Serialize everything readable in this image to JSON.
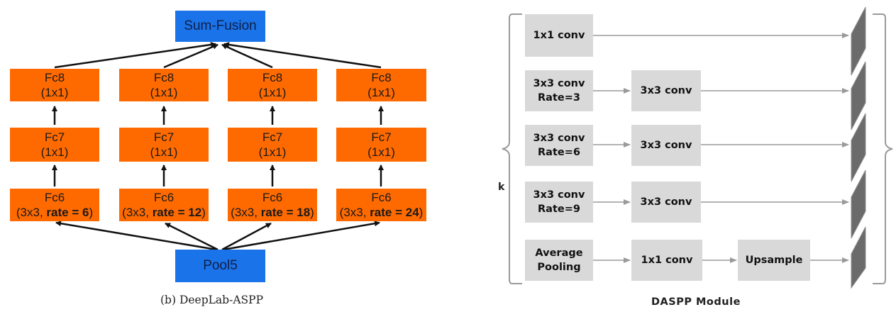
{
  "left_panel": {
    "top_box": "Sum-Fusion",
    "bottom_box": "Pool5",
    "caption": "(b) DeepLab-ASPP",
    "columns": [
      {
        "fc8_a": "Fc8",
        "fc8_b": "(1x1)",
        "fc7_a": "Fc7",
        "fc7_b": "(1x1)",
        "fc6_a": "Fc6",
        "fc6_prefix": "(3x3, ",
        "fc6_rate": "rate = 6",
        "fc6_suffix": ")"
      },
      {
        "fc8_a": "Fc8",
        "fc8_b": "(1x1)",
        "fc7_a": "Fc7",
        "fc7_b": "(1x1)",
        "fc6_a": "Fc6",
        "fc6_prefix": "(3x3, ",
        "fc6_rate": "rate = 12",
        "fc6_suffix": ")"
      },
      {
        "fc8_a": "Fc8",
        "fc8_b": "(1x1)",
        "fc7_a": "Fc7",
        "fc7_b": "(1x1)",
        "fc6_a": "Fc6",
        "fc6_prefix": "(3x3, ",
        "fc6_rate": "rate = 18",
        "fc6_suffix": ")"
      },
      {
        "fc8_a": "Fc8",
        "fc8_b": "(1x1)",
        "fc7_a": "Fc7",
        "fc7_b": "(1x1)",
        "fc6_a": "Fc6",
        "fc6_prefix": "(3x3, ",
        "fc6_rate": "rate = 24",
        "fc6_suffix": ")"
      }
    ]
  },
  "right_panel": {
    "caption": "DASPP Module",
    "brace_label": "k",
    "rows": [
      {
        "first_a": "1x1 conv",
        "first_b": ""
      },
      {
        "first_a": "3x3 conv",
        "first_b": "Rate=3",
        "second": "3x3 conv"
      },
      {
        "first_a": "3x3 conv",
        "first_b": "Rate=6",
        "second": "3x3 conv"
      },
      {
        "first_a": "3x3 conv",
        "first_b": "Rate=9",
        "second": "3x3 conv"
      },
      {
        "first_a": "Average",
        "first_b": "Pooling",
        "second": "1x1 conv",
        "third": "Upsample"
      }
    ]
  },
  "colors": {
    "blue": "#1a73e8",
    "orange": "#ff6a00",
    "gray": "#d9d9d9"
  }
}
